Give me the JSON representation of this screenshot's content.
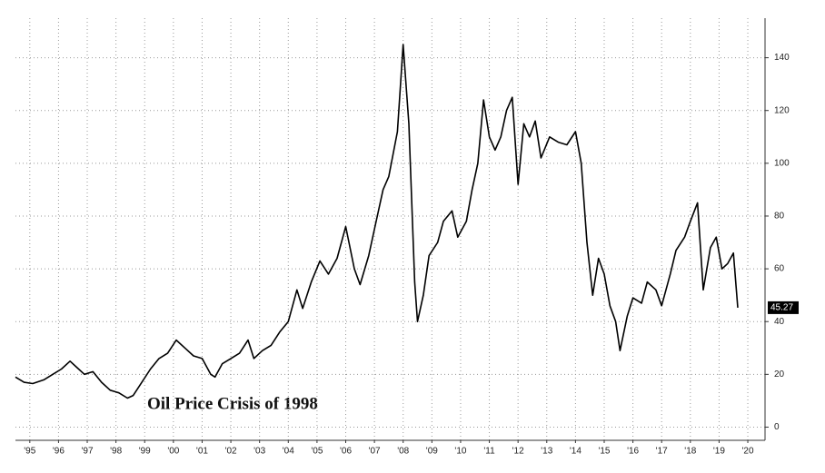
{
  "chart_data": {
    "type": "line",
    "annotation": "Oil Price Crisis of 1998",
    "color": "#000000",
    "grid": true,
    "xlim": [
      1995,
      2021.1
    ],
    "ylim": [
      -5,
      155
    ],
    "yticks": [
      0,
      20,
      40,
      60,
      80,
      100,
      120,
      140
    ],
    "xticks": [
      {
        "value": 1995.5,
        "label": "'95"
      },
      {
        "value": 1996.5,
        "label": "'96"
      },
      {
        "value": 1997.5,
        "label": "'97"
      },
      {
        "value": 1998.5,
        "label": "'98"
      },
      {
        "value": 1999.5,
        "label": "'99"
      },
      {
        "value": 2000.5,
        "label": "'00"
      },
      {
        "value": 2001.5,
        "label": "'01"
      },
      {
        "value": 2002.5,
        "label": "'02"
      },
      {
        "value": 2003.5,
        "label": "'03"
      },
      {
        "value": 2004.5,
        "label": "'04"
      },
      {
        "value": 2005.5,
        "label": "'05"
      },
      {
        "value": 2006.5,
        "label": "'06"
      },
      {
        "value": 2007.5,
        "label": "'07"
      },
      {
        "value": 2008.5,
        "label": "'08"
      },
      {
        "value": 2009.5,
        "label": "'09"
      },
      {
        "value": 2010.5,
        "label": "'10"
      },
      {
        "value": 2011.5,
        "label": "'11"
      },
      {
        "value": 2012.5,
        "label": "'12"
      },
      {
        "value": 2013.5,
        "label": "'13"
      },
      {
        "value": 2014.5,
        "label": "'14"
      },
      {
        "value": 2015.5,
        "label": "'15"
      },
      {
        "value": 2016.5,
        "label": "'16"
      },
      {
        "value": 2017.5,
        "label": "'17"
      },
      {
        "value": 2018.5,
        "label": "'18"
      },
      {
        "value": 2019.5,
        "label": "'19"
      },
      {
        "value": 2020.5,
        "label": "'20"
      }
    ],
    "x": [
      1995.0,
      1995.3,
      1995.6,
      1996.0,
      1996.3,
      1996.6,
      1996.9,
      1997.1,
      1997.4,
      1997.7,
      1998.0,
      1998.3,
      1998.6,
      1998.9,
      1999.1,
      1999.4,
      1999.7,
      2000.0,
      2000.3,
      2000.6,
      2000.9,
      2001.2,
      2001.5,
      2001.8,
      2001.95,
      2002.2,
      2002.5,
      2002.8,
      2003.1,
      2003.3,
      2003.6,
      2003.9,
      2004.2,
      2004.5,
      2004.8,
      2005.0,
      2005.3,
      2005.6,
      2005.9,
      2006.2,
      2006.5,
      2006.8,
      2007.0,
      2007.3,
      2007.5,
      2007.8,
      2008.0,
      2008.3,
      2008.5,
      2008.7,
      2008.9,
      2009.0,
      2009.2,
      2009.4,
      2009.7,
      2009.9,
      2010.2,
      2010.4,
      2010.7,
      2010.9,
      2011.1,
      2011.3,
      2011.5,
      2011.7,
      2011.9,
      2012.1,
      2012.3,
      2012.5,
      2012.7,
      2012.9,
      2013.1,
      2013.3,
      2013.6,
      2013.9,
      2014.2,
      2014.5,
      2014.7,
      2014.9,
      2015.1,
      2015.3,
      2015.5,
      2015.7,
      2015.9,
      2016.05,
      2016.3,
      2016.5,
      2016.8,
      2017.0,
      2017.3,
      2017.5,
      2017.8,
      2018.0,
      2018.3,
      2018.5,
      2018.75,
      2018.95,
      2019.2,
      2019.4,
      2019.6,
      2019.8,
      2020.0,
      2020.15
    ],
    "values": [
      19,
      17,
      16.5,
      18,
      20,
      22,
      25,
      23,
      20,
      21,
      17,
      14,
      13,
      11,
      12,
      17,
      22,
      26,
      28,
      33,
      30,
      27,
      26,
      20,
      19,
      24,
      26,
      28,
      33,
      26,
      29,
      31,
      36,
      40,
      52,
      45,
      55,
      63,
      58,
      64,
      76,
      60,
      54,
      65,
      75,
      90,
      95,
      112,
      145,
      115,
      55,
      40,
      50,
      65,
      70,
      78,
      82,
      72,
      78,
      90,
      100,
      124,
      110,
      105,
      110,
      120,
      125,
      92,
      115,
      110,
      116,
      102,
      110,
      108,
      107,
      112,
      100,
      70,
      50,
      64,
      58,
      46,
      40,
      29,
      42,
      49,
      47,
      55,
      52,
      46,
      58,
      67,
      72,
      78,
      85,
      52,
      68,
      72,
      60,
      62,
      66,
      45.27
    ]
  }
}
